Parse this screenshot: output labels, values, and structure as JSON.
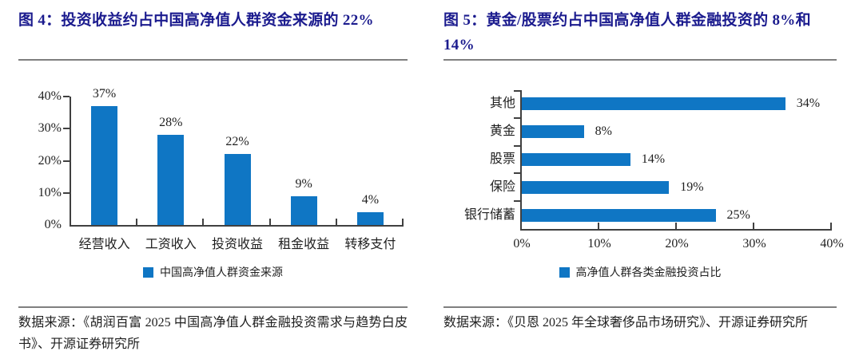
{
  "colors": {
    "bar_blue": "#0f76c4",
    "title_navy": "#1b1b8e",
    "divider_gray": "#7f7f7f",
    "axis_gray": "#404040",
    "text_dark": "#1f1f1f"
  },
  "figure4": {
    "title": "图 4：投资收益约占中国高净值人群资金来源的 22%",
    "legend": "中国高净值人群资金来源",
    "source": "数据来源：《胡润百富 2025 中国高净值人群金融投资需求与趋势白皮书》、开源证券研究所"
  },
  "figure5": {
    "title": "图 5：黄金/股票约占中国高净值人群金融投资的 8%和 14%",
    "legend": "高净值人群各类金融投资占比",
    "source": "数据来源：《贝恩 2025 年全球奢侈品市场研究》、开源证券研究所"
  },
  "chart_data": [
    {
      "type": "bar",
      "orientation": "vertical",
      "title": "图 4：投资收益约占中国高净值人群资金来源的 22%",
      "categories": [
        "经营收入",
        "工资收入",
        "投资收益",
        "租金收益",
        "转移支付"
      ],
      "values": [
        37,
        28,
        22,
        9,
        4
      ],
      "value_labels": [
        "37%",
        "28%",
        "22%",
        "9%",
        "4%"
      ],
      "ylim": [
        0,
        40
      ],
      "yticks": [
        0,
        10,
        20,
        30,
        40
      ],
      "ytick_labels": [
        "0%",
        "10%",
        "20%",
        "30%",
        "40%"
      ],
      "grid": false,
      "legend": [
        "中国高净值人群资金来源"
      ],
      "legend_position": "bottom",
      "bar_color": "#0f76c4"
    },
    {
      "type": "bar",
      "orientation": "horizontal",
      "title": "图 5：黄金/股票约占中国高净值人群金融投资的 8%和 14%",
      "categories": [
        "其他",
        "黄金",
        "股票",
        "保险",
        "银行储蓄"
      ],
      "values": [
        34,
        8,
        14,
        19,
        25
      ],
      "value_labels": [
        "34%",
        "8%",
        "14%",
        "19%",
        "25%"
      ],
      "xlim": [
        0,
        40
      ],
      "xticks": [
        0,
        10,
        20,
        30,
        40
      ],
      "xtick_labels": [
        "0%",
        "10%",
        "20%",
        "30%",
        "40%"
      ],
      "grid": false,
      "legend": [
        "高净值人群各类金融投资占比"
      ],
      "legend_position": "bottom",
      "bar_color": "#0f76c4"
    }
  ]
}
